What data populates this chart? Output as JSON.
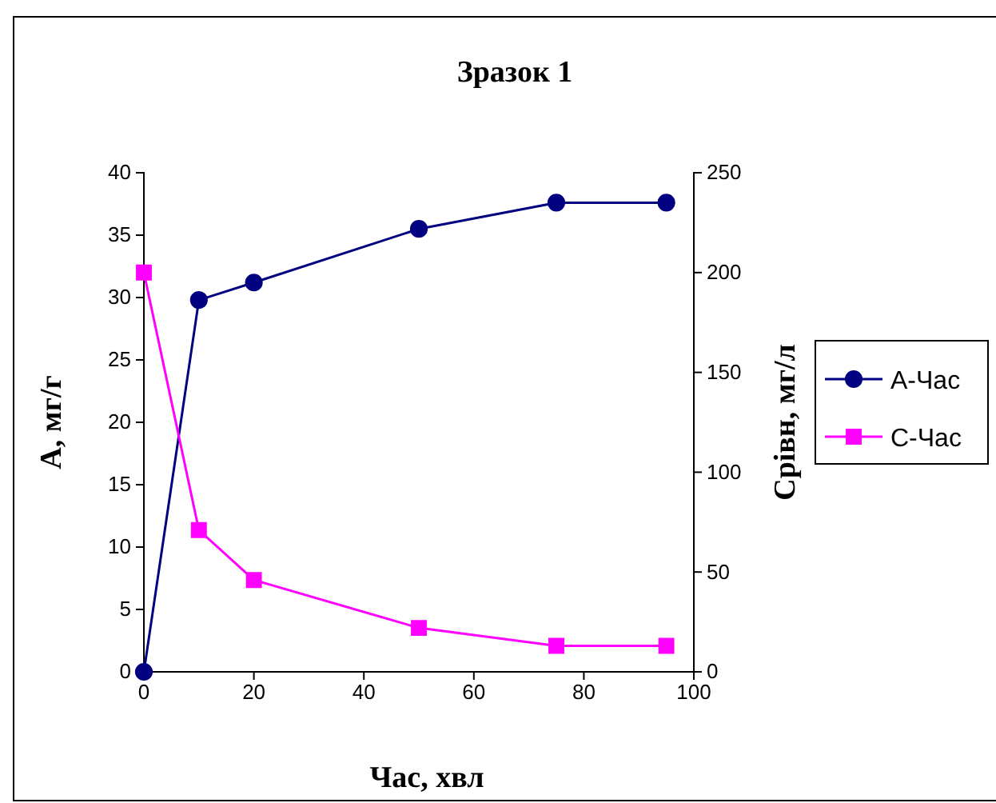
{
  "chart_data": {
    "type": "line",
    "title": "Зразок 1",
    "xlabel": "Час, хвл",
    "ylabel": "А, мг/г",
    "y2label": "Срівн, мг/л",
    "x": [
      0,
      10,
      20,
      50,
      75,
      95
    ],
    "series": [
      {
        "name": "А-Час",
        "color": "#000080",
        "values": [
          0,
          29.8,
          31.2,
          35.5,
          37.6,
          37.6
        ],
        "marker": "circle"
      },
      {
        "name": "С-Час",
        "color": "#ff00ff",
        "values": [
          200,
          71,
          46,
          22,
          13,
          13
        ],
        "axis": "y2",
        "marker": "square"
      }
    ],
    "xlim": [
      0,
      100
    ],
    "xticks": [
      0,
      20,
      40,
      60,
      80,
      100
    ],
    "ylim": [
      0,
      40
    ],
    "yticks": [
      0,
      5,
      10,
      15,
      20,
      25,
      30,
      35,
      40
    ],
    "y2lim": [
      0,
      250
    ],
    "y2ticks": [
      0,
      50,
      100,
      150,
      200,
      250
    ],
    "grid": false,
    "legend": "right",
    "line_style": "solid"
  }
}
